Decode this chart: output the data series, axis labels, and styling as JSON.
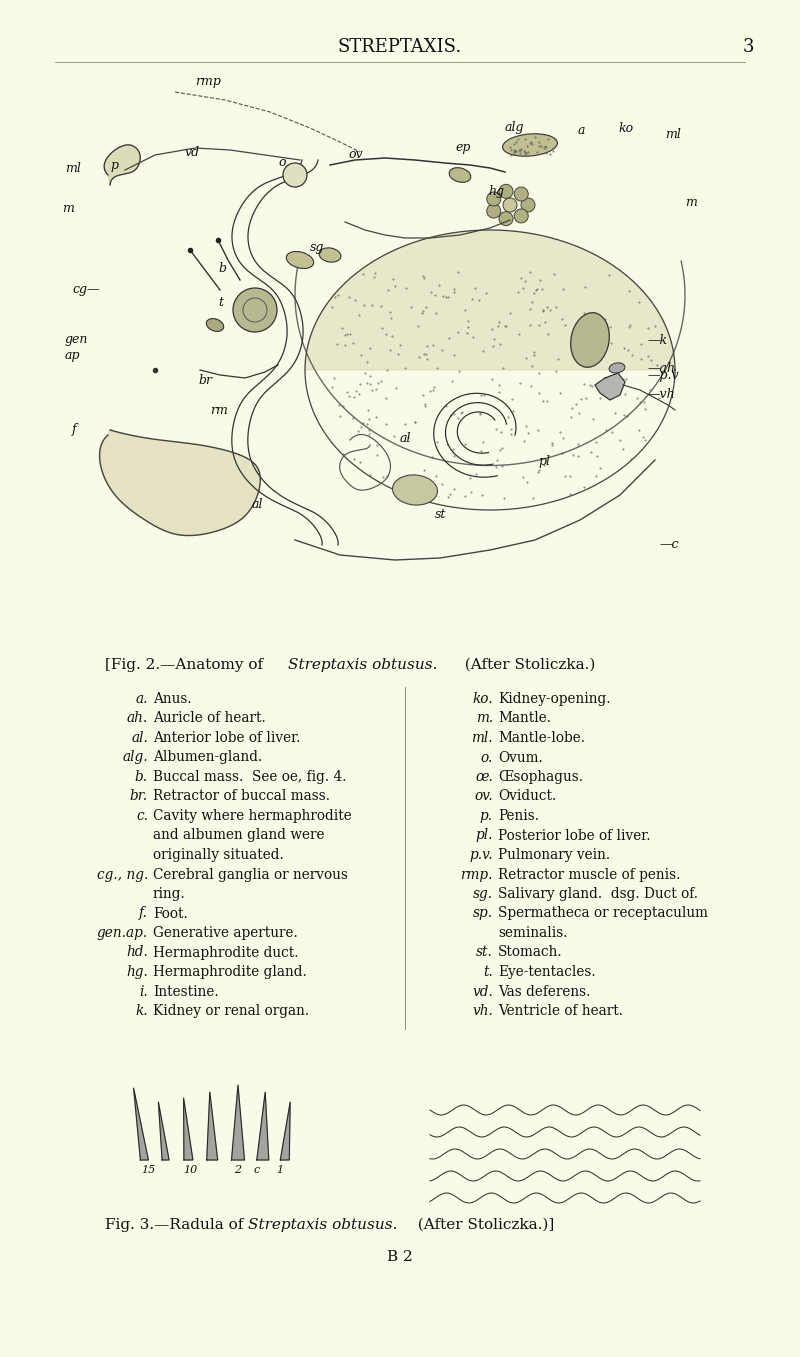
{
  "background_color": "#FAFAE8",
  "page_header": "STREPTAXIS.",
  "page_number": "3",
  "fig2_caption_plain": "[Fig. 2.—Anatomy of ",
  "fig2_caption_italic": "Streptaxis obtusus.",
  "fig2_caption_end": "  (After Stoliczka.)",
  "fig3_caption_plain": "Fig. 3.—Radula of ",
  "fig3_caption_italic": "Streptaxis obtusus.",
  "fig3_caption_end": "  (After Stoliczka.)]",
  "footer_center": "B 2",
  "legend_left": [
    [
      "a.",
      "Anus."
    ],
    [
      "ah.",
      "Auricle of heart."
    ],
    [
      "al.",
      "Anterior lobe of liver."
    ],
    [
      "alg.",
      "Albumen-gland."
    ],
    [
      "b.",
      "Buccal mass.  See oe, fig. 4."
    ],
    [
      "br.",
      "Retractor of buccal mass."
    ],
    [
      "c.",
      "Cavity where hermaphrodite"
    ],
    [
      "",
      "and albumen gland were"
    ],
    [
      "",
      "originally situated."
    ],
    [
      "cg., ng.",
      "Cerebral ganglia or nervous"
    ],
    [
      "",
      "ring."
    ],
    [
      "f.",
      "Foot."
    ],
    [
      "gen.ap.",
      "Generative aperture."
    ],
    [
      "hd.",
      "Hermaphrodite duct."
    ],
    [
      "hg.",
      "Hermaphrodite gland."
    ],
    [
      "i.",
      "Intestine."
    ],
    [
      "k.",
      "Kidney or renal organ."
    ]
  ],
  "legend_right": [
    [
      "ko.",
      "Kidney-opening."
    ],
    [
      "m.",
      "Mantle."
    ],
    [
      "ml.",
      "Mantle-lobe."
    ],
    [
      "o.",
      "Ovum."
    ],
    [
      "œ.",
      "Œsophagus."
    ],
    [
      "ov.",
      "Oviduct."
    ],
    [
      "p.",
      "Penis."
    ],
    [
      "pl.",
      "Posterior lobe of liver."
    ],
    [
      "p.v.",
      "Pulmonary vein."
    ],
    [
      "rmp.",
      "Retractor muscle of penis."
    ],
    [
      "sg.",
      "Salivary gland.  dsg. Duct of."
    ],
    [
      "sp.",
      "Spermatheca or receptaculum"
    ],
    [
      "",
      "seminalis."
    ],
    [
      "st.",
      "Stomach."
    ],
    [
      "t.",
      "Eye-tentacles."
    ],
    [
      "vd.",
      "Vas deferens."
    ],
    [
      "vh.",
      "Ventricle of heart."
    ]
  ],
  "text_color": "#111111"
}
